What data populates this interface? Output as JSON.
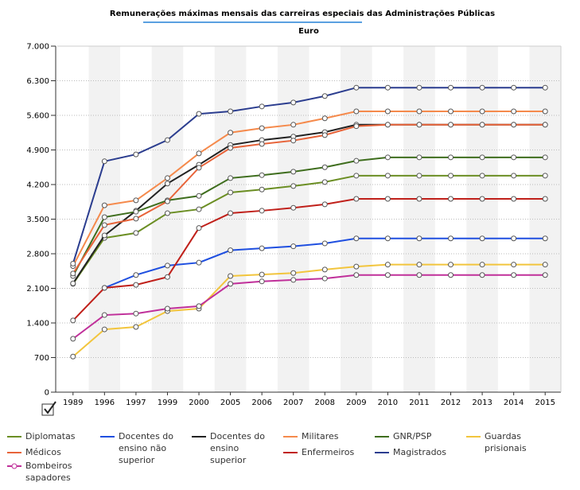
{
  "chart_data": {
    "type": "line",
    "title": "Remunerações máximas mensais das carreiras especiais das Administrações Públicas",
    "subtitle": "Euro",
    "categories": [
      "1989",
      "1996",
      "1997",
      "1999",
      "2000",
      "2005",
      "2006",
      "2007",
      "2008",
      "2009",
      "2010",
      "2011",
      "2012",
      "2013",
      "2014",
      "2015"
    ],
    "ylim": [
      0,
      7000
    ],
    "yticks": [
      0,
      700,
      {
        "value": 1400,
        "label": "1.400"
      },
      {
        "value": 2100,
        "label": "2.100"
      },
      {
        "value": 2800,
        "label": "2.800"
      },
      {
        "value": 3500,
        "label": "3.500"
      },
      {
        "value": 4200,
        "label": "4.200"
      },
      {
        "value": 4900,
        "label": "4.900"
      },
      {
        "value": 5600,
        "label": "5.600"
      },
      {
        "value": 6300,
        "label": "6.300"
      },
      {
        "value": 7000,
        "label": "7.000"
      }
    ],
    "grid": true,
    "series": [
      {
        "name": "Diplomatas",
        "color": "#6b8e23",
        "values": [
          2190,
          3120,
          3220,
          3620,
          3700,
          4040,
          4100,
          4170,
          4250,
          4380,
          4380,
          4380,
          4380,
          4380,
          4380,
          4380
        ]
      },
      {
        "name": "Docentes do ensino não superior",
        "color": "#1f4fe0",
        "values": [
          null,
          2110,
          2370,
          2560,
          2620,
          2870,
          2910,
          2950,
          3010,
          3110,
          3110,
          3110,
          3110,
          3110,
          3110,
          3110
        ]
      },
      {
        "name": "Docentes do ensino superior",
        "color": "#222222",
        "values": [
          2200,
          3170,
          3670,
          4220,
          4600,
          5000,
          5100,
          5170,
          5260,
          5410,
          5410,
          5410,
          5410,
          5410,
          5410,
          5410
        ]
      },
      {
        "name": "Militares",
        "color": "#f58a4c",
        "values": [
          2550,
          3780,
          3880,
          4330,
          4830,
          5250,
          5340,
          5410,
          5540,
          5680,
          5680,
          5680,
          5680,
          5680,
          5680,
          5680
        ]
      },
      {
        "name": "GNR/PSP",
        "color": "#3f6e1e",
        "values": [
          2350,
          3540,
          3650,
          3880,
          3970,
          4330,
          4390,
          4460,
          4550,
          4680,
          4750,
          4750,
          4750,
          4750,
          4750,
          4750
        ]
      },
      {
        "name": "Guardas prisionais",
        "color": "#f2c53d",
        "values": [
          720,
          1270,
          1320,
          1640,
          1690,
          2350,
          2380,
          2410,
          2480,
          2540,
          2580,
          2580,
          2580,
          2580,
          2580,
          2580
        ]
      },
      {
        "name": "Médicos",
        "color": "#e8643a",
        "values": [
          2400,
          3380,
          3510,
          3860,
          4540,
          4940,
          5020,
          5090,
          5200,
          5380,
          5410,
          5410,
          5410,
          5410,
          5410,
          5410
        ]
      },
      {
        "name": "Enfermeiros",
        "color": "#c0201a",
        "values": [
          1450,
          2110,
          2170,
          2330,
          3320,
          3620,
          3670,
          3730,
          3800,
          3910,
          3910,
          3910,
          3910,
          3910,
          3910,
          3910
        ]
      },
      {
        "name": "Magistrados",
        "color": "#2b3d8f",
        "values": [
          2600,
          4670,
          4810,
          5100,
          5630,
          5680,
          5780,
          5860,
          5990,
          6160,
          6160,
          6160,
          6160,
          6160,
          6160,
          6160
        ]
      },
      {
        "name": "Bombeiros sapadores",
        "color": "#c0309a",
        "values": [
          1080,
          1560,
          1590,
          1690,
          1740,
          2190,
          2240,
          2270,
          2300,
          2370,
          2370,
          2370,
          2370,
          2370,
          2370,
          2370
        ]
      }
    ]
  }
}
